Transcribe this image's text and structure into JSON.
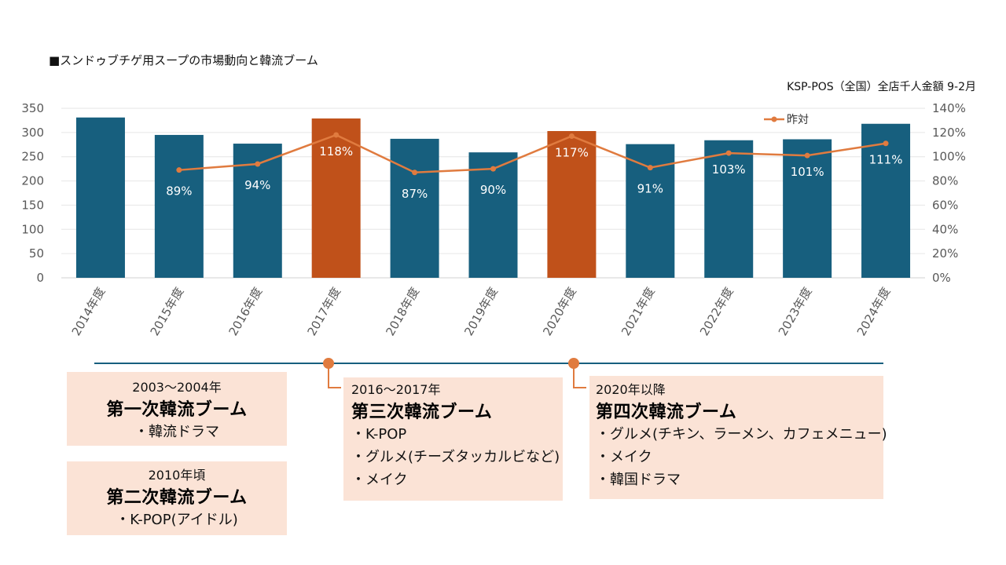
{
  "title": "■スンドゥブチゲ用スープの市場動向と韓流ブーム",
  "source_note": "KSP-POS（全国）全店千人金額 9-2月",
  "chart_data": {
    "type": "bar",
    "categories": [
      "2014年度",
      "2015年度",
      "2016年度",
      "2017年度",
      "2018年度",
      "2019年度",
      "2020年度",
      "2021年度",
      "2022年度",
      "2023年度",
      "2024年度"
    ],
    "series": [
      {
        "values": [
          331,
          295,
          277,
          329,
          287,
          259,
          303,
          276,
          284,
          286,
          318
        ],
        "highlight": [
          false,
          false,
          false,
          true,
          false,
          false,
          true,
          false,
          false,
          false,
          false
        ]
      },
      {
        "name": "昨対",
        "type": "line",
        "axis": "right",
        "values": [
          null,
          89,
          94,
          118,
          87,
          90,
          117,
          91,
          103,
          101,
          111
        ],
        "labels": [
          "",
          "89%",
          "94%",
          "118%",
          "87%",
          "90%",
          "117%",
          "91%",
          "103%",
          "101%",
          "111%"
        ]
      }
    ],
    "ylim": [
      0,
      350
    ],
    "yticks": [
      0,
      50,
      100,
      150,
      200,
      250,
      300,
      350
    ],
    "y2lim": [
      0,
      140
    ],
    "y2ticks": [
      "0%",
      "20%",
      "40%",
      "60%",
      "80%",
      "100%",
      "120%",
      "140%"
    ],
    "legend": "top-right",
    "grid": true,
    "colors": {
      "bar": "#175f7e",
      "highlight": "#c0511a",
      "line": "#e07b3f",
      "label": "#ffffff",
      "axis_text": "#595959",
      "timeline": "#175f7e"
    }
  },
  "timeline": {
    "markers": [
      {
        "after": "2016年度",
        "category": "2017年度"
      },
      {
        "after": "2019年度",
        "category": "2020年度"
      }
    ]
  },
  "booms": [
    {
      "period": "2003～2004年",
      "heading": "第一次韓流ブーム",
      "items": [
        "・韓流ドラマ"
      ]
    },
    {
      "period": "2010年頃",
      "heading": "第二次韓流ブーム",
      "items": [
        "・K-POP(アイドル)"
      ]
    },
    {
      "period": "2016～2017年",
      "heading": "第三次韓流ブーム",
      "items": [
        "・K-POP",
        "・グルメ(チーズタッカルビなど)",
        "・メイク"
      ]
    },
    {
      "period": "2020年以降",
      "heading": "第四次韓流ブーム",
      "items": [
        "・グルメ(チキン、ラーメン、カフェメニュー)",
        "・メイク",
        "・韓国ドラマ"
      ]
    }
  ]
}
